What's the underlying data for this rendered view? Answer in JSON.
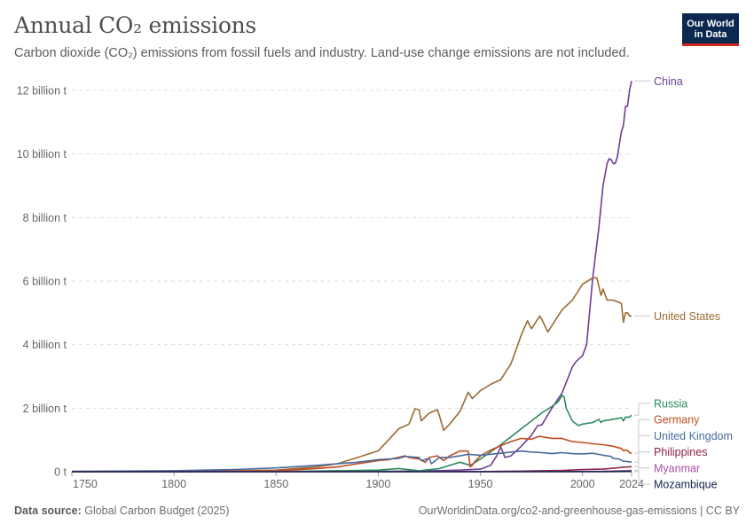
{
  "header": {
    "title": "Annual CO₂ emissions",
    "subtitle": "Carbon dioxide (CO₂) emissions from fossil fuels and industry. Land-use change emissions are not included."
  },
  "logo": {
    "line1": "Our World",
    "line2": "in Data",
    "bg_color": "#0b2850",
    "accent_color": "#ce261e"
  },
  "footer": {
    "source_label": "Data source:",
    "source_text": "Global Carbon Budget (2025)",
    "url": "OurWorldinData.org/co2-and-greenhouse-gas-emissions",
    "separator": "|",
    "license": "CC BY"
  },
  "chart_data": {
    "type": "line",
    "title": "Annual CO₂ emissions",
    "xlabel": "",
    "ylabel": "",
    "xlim": [
      1750,
      2024
    ],
    "ylim": [
      0,
      12
    ],
    "x_ticks": [
      1750,
      1800,
      1850,
      1900,
      1950,
      2000,
      2024
    ],
    "y_ticks": [
      0,
      2,
      4,
      6,
      8,
      10,
      12
    ],
    "y_tick_labels": [
      "0 t",
      "2 billion t",
      "4 billion t",
      "6 billion t",
      "8 billion t",
      "10 billion t",
      "12 billion t"
    ],
    "y_unit": "billion t",
    "grid": "horizontal dashed",
    "legend": "right, labels at line ends",
    "series": [
      {
        "name": "China",
        "color": "#6d3e91",
        "x": [
          1750,
          1900,
          1920,
          1940,
          1950,
          1955,
          1958,
          1960,
          1962,
          1965,
          1970,
          1975,
          1978,
          1980,
          1985,
          1990,
          1995,
          1997,
          2000,
          2002,
          2005,
          2008,
          2010,
          2012,
          2013,
          2014,
          2015,
          2016,
          2017,
          2018,
          2019,
          2020,
          2021,
          2022,
          2023,
          2024
        ],
        "y": [
          0,
          0.01,
          0.02,
          0.05,
          0.08,
          0.2,
          0.5,
          0.78,
          0.45,
          0.5,
          0.8,
          1.15,
          1.45,
          1.47,
          2.0,
          2.48,
          3.3,
          3.48,
          3.65,
          4.0,
          6.1,
          7.7,
          9.0,
          9.7,
          9.85,
          9.82,
          9.7,
          9.7,
          9.9,
          10.3,
          10.7,
          10.9,
          11.5,
          11.5,
          12.0,
          12.3
        ]
      },
      {
        "name": "United States",
        "color": "#9a6a33",
        "x": [
          1750,
          1800,
          1850,
          1870,
          1880,
          1890,
          1900,
          1905,
          1910,
          1915,
          1918,
          1920,
          1921,
          1925,
          1929,
          1930,
          1932,
          1935,
          1940,
          1944,
          1945,
          1946,
          1950,
          1955,
          1960,
          1965,
          1970,
          1973,
          1975,
          1979,
          1980,
          1983,
          1985,
          1990,
          1995,
          2000,
          2005,
          2007,
          2009,
          2010,
          2012,
          2015,
          2019,
          2020,
          2021,
          2022,
          2023,
          2024
        ],
        "y": [
          0,
          0.003,
          0.05,
          0.15,
          0.25,
          0.45,
          0.66,
          1.0,
          1.35,
          1.5,
          1.98,
          1.95,
          1.6,
          1.85,
          1.95,
          1.75,
          1.3,
          1.5,
          1.9,
          2.5,
          2.4,
          2.3,
          2.55,
          2.75,
          2.9,
          3.4,
          4.3,
          4.75,
          4.5,
          4.9,
          4.8,
          4.4,
          4.6,
          5.1,
          5.4,
          5.9,
          6.1,
          6.1,
          5.55,
          5.75,
          5.4,
          5.4,
          5.3,
          4.7,
          5.0,
          5.0,
          4.9,
          4.9
        ]
      },
      {
        "name": "Russia",
        "color": "#2a8a5e",
        "x": [
          1750,
          1850,
          1900,
          1910,
          1920,
          1930,
          1940,
          1945,
          1950,
          1960,
          1970,
          1980,
          1985,
          1988,
          1990,
          1991,
          1992,
          1995,
          1998,
          2000,
          2005,
          2008,
          2009,
          2010,
          2015,
          2019,
          2020,
          2021,
          2022,
          2023,
          2024
        ],
        "y": [
          0,
          0.002,
          0.05,
          0.1,
          0.03,
          0.1,
          0.3,
          0.2,
          0.4,
          0.85,
          1.35,
          1.85,
          2.05,
          2.2,
          2.4,
          2.35,
          2.0,
          1.6,
          1.45,
          1.5,
          1.55,
          1.65,
          1.55,
          1.6,
          1.65,
          1.7,
          1.6,
          1.72,
          1.72,
          1.72,
          1.78
        ]
      },
      {
        "name": "Germany",
        "color": "#c04d20",
        "x": [
          1750,
          1800,
          1850,
          1870,
          1880,
          1890,
          1900,
          1905,
          1913,
          1915,
          1920,
          1923,
          1925,
          1929,
          1932,
          1935,
          1940,
          1944,
          1945,
          1946,
          1947,
          1950,
          1955,
          1960,
          1965,
          1970,
          1975,
          1979,
          1980,
          1985,
          1990,
          1991,
          1995,
          2000,
          2005,
          2010,
          2015,
          2019,
          2020,
          2021,
          2022,
          2023,
          2024
        ],
        "y": [
          0,
          0.003,
          0.03,
          0.1,
          0.15,
          0.25,
          0.35,
          0.38,
          0.5,
          0.45,
          0.4,
          0.3,
          0.45,
          0.5,
          0.35,
          0.5,
          0.65,
          0.65,
          0.15,
          0.2,
          0.3,
          0.5,
          0.68,
          0.82,
          0.95,
          1.05,
          1.02,
          1.12,
          1.1,
          1.05,
          1.05,
          1.02,
          0.95,
          0.92,
          0.88,
          0.85,
          0.8,
          0.73,
          0.66,
          0.68,
          0.67,
          0.6,
          0.58
        ]
      },
      {
        "name": "United Kingdom",
        "color": "#49689e",
        "x": [
          1750,
          1800,
          1830,
          1850,
          1870,
          1880,
          1890,
          1900,
          1910,
          1913,
          1920,
          1921,
          1925,
          1926,
          1930,
          1935,
          1940,
          1944,
          1950,
          1960,
          1965,
          1970,
          1975,
          1980,
          1985,
          1990,
          1995,
          2000,
          2005,
          2010,
          2014,
          2015,
          2018,
          2020,
          2022,
          2024
        ],
        "y": [
          0.01,
          0.03,
          0.07,
          0.12,
          0.2,
          0.25,
          0.3,
          0.38,
          0.42,
          0.48,
          0.45,
          0.35,
          0.42,
          0.25,
          0.45,
          0.45,
          0.5,
          0.55,
          0.52,
          0.58,
          0.62,
          0.65,
          0.62,
          0.6,
          0.57,
          0.6,
          0.57,
          0.56,
          0.58,
          0.52,
          0.48,
          0.42,
          0.4,
          0.33,
          0.32,
          0.3
        ]
      },
      {
        "name": "Philippines",
        "color": "#8c2147",
        "x": [
          1750,
          1950,
          1970,
          1990,
          2000,
          2010,
          2020,
          2024
        ],
        "y": [
          0,
          0.005,
          0.02,
          0.04,
          0.07,
          0.08,
          0.14,
          0.16
        ]
      },
      {
        "name": "Myanmar",
        "color": "#a74fa2",
        "x": [
          1750,
          1950,
          1990,
          2010,
          2024
        ],
        "y": [
          0,
          0.002,
          0.005,
          0.01,
          0.04
        ]
      },
      {
        "name": "Mozambique",
        "color": "#12264a",
        "x": [
          1750,
          1950,
          1990,
          2010,
          2024
        ],
        "y": [
          0,
          0.001,
          0.002,
          0.004,
          0.009
        ]
      }
    ]
  }
}
